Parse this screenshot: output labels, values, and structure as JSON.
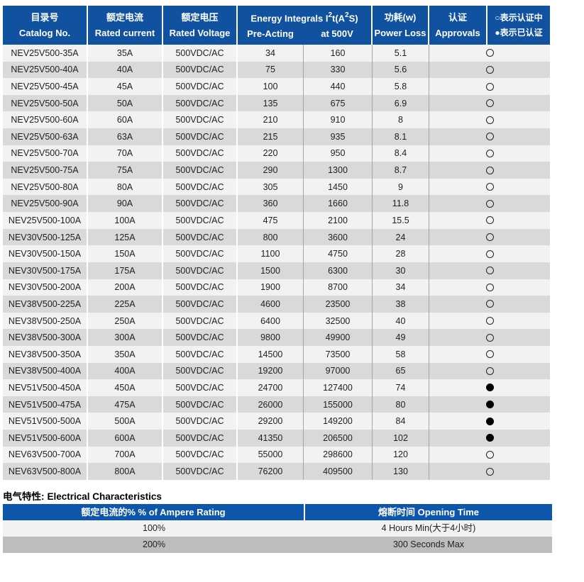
{
  "colors": {
    "main_header_blue": "#10529f",
    "section_header_blue": "#0d56a9",
    "row_light": "#f2f2f2",
    "row_dark": "#d9d9d9",
    "row_dark_bottom": "#bdbdbd"
  },
  "main_table": {
    "header": {
      "catalog": {
        "zh": "目录号",
        "en": "Catalog No."
      },
      "current": {
        "zh": "额定电流",
        "en": "Rated current"
      },
      "voltage": {
        "zh": "额定电压",
        "en": "Rated Voltage"
      },
      "energy_group": {
        "title_parts": [
          "Energy Integrals I",
          "2",
          "t(A",
          "2",
          "S)"
        ],
        "sub1": "Pre-Acting",
        "sub2": "at 500V"
      },
      "power": {
        "zh": "功耗(w)",
        "en": "Power Loss"
      },
      "approvals": {
        "zh": "认证",
        "en": "Approvals"
      },
      "legend": {
        "line1": "○表示认证中",
        "line2": "●表示已认证"
      }
    },
    "rows": [
      {
        "catalog": "NEV25V500-35A",
        "current": "35A",
        "voltage": "500VDC/AC",
        "pre_acting": "34",
        "at_500v": "160",
        "power_loss": "5.1",
        "approval": "pending"
      },
      {
        "catalog": "NEV25V500-40A",
        "current": "40A",
        "voltage": "500VDC/AC",
        "pre_acting": "75",
        "at_500v": "330",
        "power_loss": "5.6",
        "approval": "pending"
      },
      {
        "catalog": "NEV25V500-45A",
        "current": "45A",
        "voltage": "500VDC/AC",
        "pre_acting": "100",
        "at_500v": "440",
        "power_loss": "5.8",
        "approval": "pending"
      },
      {
        "catalog": "NEV25V500-50A",
        "current": "50A",
        "voltage": "500VDC/AC",
        "pre_acting": "135",
        "at_500v": "675",
        "power_loss": "6.9",
        "approval": "pending"
      },
      {
        "catalog": "NEV25V500-60A",
        "current": "60A",
        "voltage": "500VDC/AC",
        "pre_acting": "210",
        "at_500v": "910",
        "power_loss": "8",
        "approval": "pending"
      },
      {
        "catalog": "NEV25V500-63A",
        "current": "63A",
        "voltage": "500VDC/AC",
        "pre_acting": "215",
        "at_500v": "935",
        "power_loss": "8.1",
        "approval": "pending"
      },
      {
        "catalog": "NEV25V500-70A",
        "current": "70A",
        "voltage": "500VDC/AC",
        "pre_acting": "220",
        "at_500v": "950",
        "power_loss": "8.4",
        "approval": "pending"
      },
      {
        "catalog": "NEV25V500-75A",
        "current": "75A",
        "voltage": "500VDC/AC",
        "pre_acting": "290",
        "at_500v": "1300",
        "power_loss": "8.7",
        "approval": "pending"
      },
      {
        "catalog": "NEV25V500-80A",
        "current": "80A",
        "voltage": "500VDC/AC",
        "pre_acting": "305",
        "at_500v": "1450",
        "power_loss": "9",
        "approval": "pending"
      },
      {
        "catalog": "NEV25V500-90A",
        "current": "90A",
        "voltage": "500VDC/AC",
        "pre_acting": "360",
        "at_500v": "1660",
        "power_loss": "11.8",
        "approval": "pending"
      },
      {
        "catalog": "NEV25V500-100A",
        "current": "100A",
        "voltage": "500VDC/AC",
        "pre_acting": "475",
        "at_500v": "2100",
        "power_loss": "15.5",
        "approval": "pending"
      },
      {
        "catalog": "NEV30V500-125A",
        "current": "125A",
        "voltage": "500VDC/AC",
        "pre_acting": "800",
        "at_500v": "3600",
        "power_loss": "24",
        "approval": "pending"
      },
      {
        "catalog": "NEV30V500-150A",
        "current": "150A",
        "voltage": "500VDC/AC",
        "pre_acting": "1100",
        "at_500v": "4750",
        "power_loss": "28",
        "approval": "pending"
      },
      {
        "catalog": "NEV30V500-175A",
        "current": "175A",
        "voltage": "500VDC/AC",
        "pre_acting": "1500",
        "at_500v": "6300",
        "power_loss": "30",
        "approval": "pending"
      },
      {
        "catalog": "NEV30V500-200A",
        "current": "200A",
        "voltage": "500VDC/AC",
        "pre_acting": "1900",
        "at_500v": "8700",
        "power_loss": "34",
        "approval": "pending"
      },
      {
        "catalog": "NEV38V500-225A",
        "current": "225A",
        "voltage": "500VDC/AC",
        "pre_acting": "4600",
        "at_500v": "23500",
        "power_loss": "38",
        "approval": "pending"
      },
      {
        "catalog": "NEV38V500-250A",
        "current": "250A",
        "voltage": "500VDC/AC",
        "pre_acting": "6400",
        "at_500v": "32500",
        "power_loss": "40",
        "approval": "pending"
      },
      {
        "catalog": "NEV38V500-300A",
        "current": "300A",
        "voltage": "500VDC/AC",
        "pre_acting": "9800",
        "at_500v": "49900",
        "power_loss": "49",
        "approval": "pending"
      },
      {
        "catalog": "NEV38V500-350A",
        "current": "350A",
        "voltage": "500VDC/AC",
        "pre_acting": "14500",
        "at_500v": "73500",
        "power_loss": "58",
        "approval": "pending"
      },
      {
        "catalog": "NEV38V500-400A",
        "current": "400A",
        "voltage": "500VDC/AC",
        "pre_acting": "19200",
        "at_500v": "97000",
        "power_loss": "65",
        "approval": "pending"
      },
      {
        "catalog": "NEV51V500-450A",
        "current": "450A",
        "voltage": "500VDC/AC",
        "pre_acting": "24700",
        "at_500v": "127400",
        "power_loss": "74",
        "approval": "approved"
      },
      {
        "catalog": "NEV51V500-475A",
        "current": "475A",
        "voltage": "500VDC/AC",
        "pre_acting": "26000",
        "at_500v": "155000",
        "power_loss": "80",
        "approval": "approved"
      },
      {
        "catalog": "NEV51V500-500A",
        "current": "500A",
        "voltage": "500VDC/AC",
        "pre_acting": "29200",
        "at_500v": "149200",
        "power_loss": "84",
        "approval": "approved"
      },
      {
        "catalog": "NEV51V500-600A",
        "current": "600A",
        "voltage": "500VDC/AC",
        "pre_acting": "41350",
        "at_500v": "206500",
        "power_loss": "102",
        "approval": "approved"
      },
      {
        "catalog": "NEV63V500-700A",
        "current": "700A",
        "voltage": "500VDC/AC",
        "pre_acting": "55000",
        "at_500v": "298600",
        "power_loss": "120",
        "approval": "pending"
      },
      {
        "catalog": "NEV63V500-800A",
        "current": "800A",
        "voltage": "500VDC/AC",
        "pre_acting": "76200",
        "at_500v": "409500",
        "power_loss": "130",
        "approval": "pending"
      }
    ]
  },
  "section2": {
    "heading_zh": "电气特性:",
    "heading_en": "Electrical Characteristics",
    "table": {
      "col1_header": "额定电流的%  % of Ampere Rating",
      "col2_header": "熔断时间  Opening Time",
      "rows": [
        {
          "rating": "100%",
          "time": "4 Hours Min(大于4小时)"
        },
        {
          "rating": "200%",
          "time": "300 Seconds Max"
        }
      ]
    }
  }
}
